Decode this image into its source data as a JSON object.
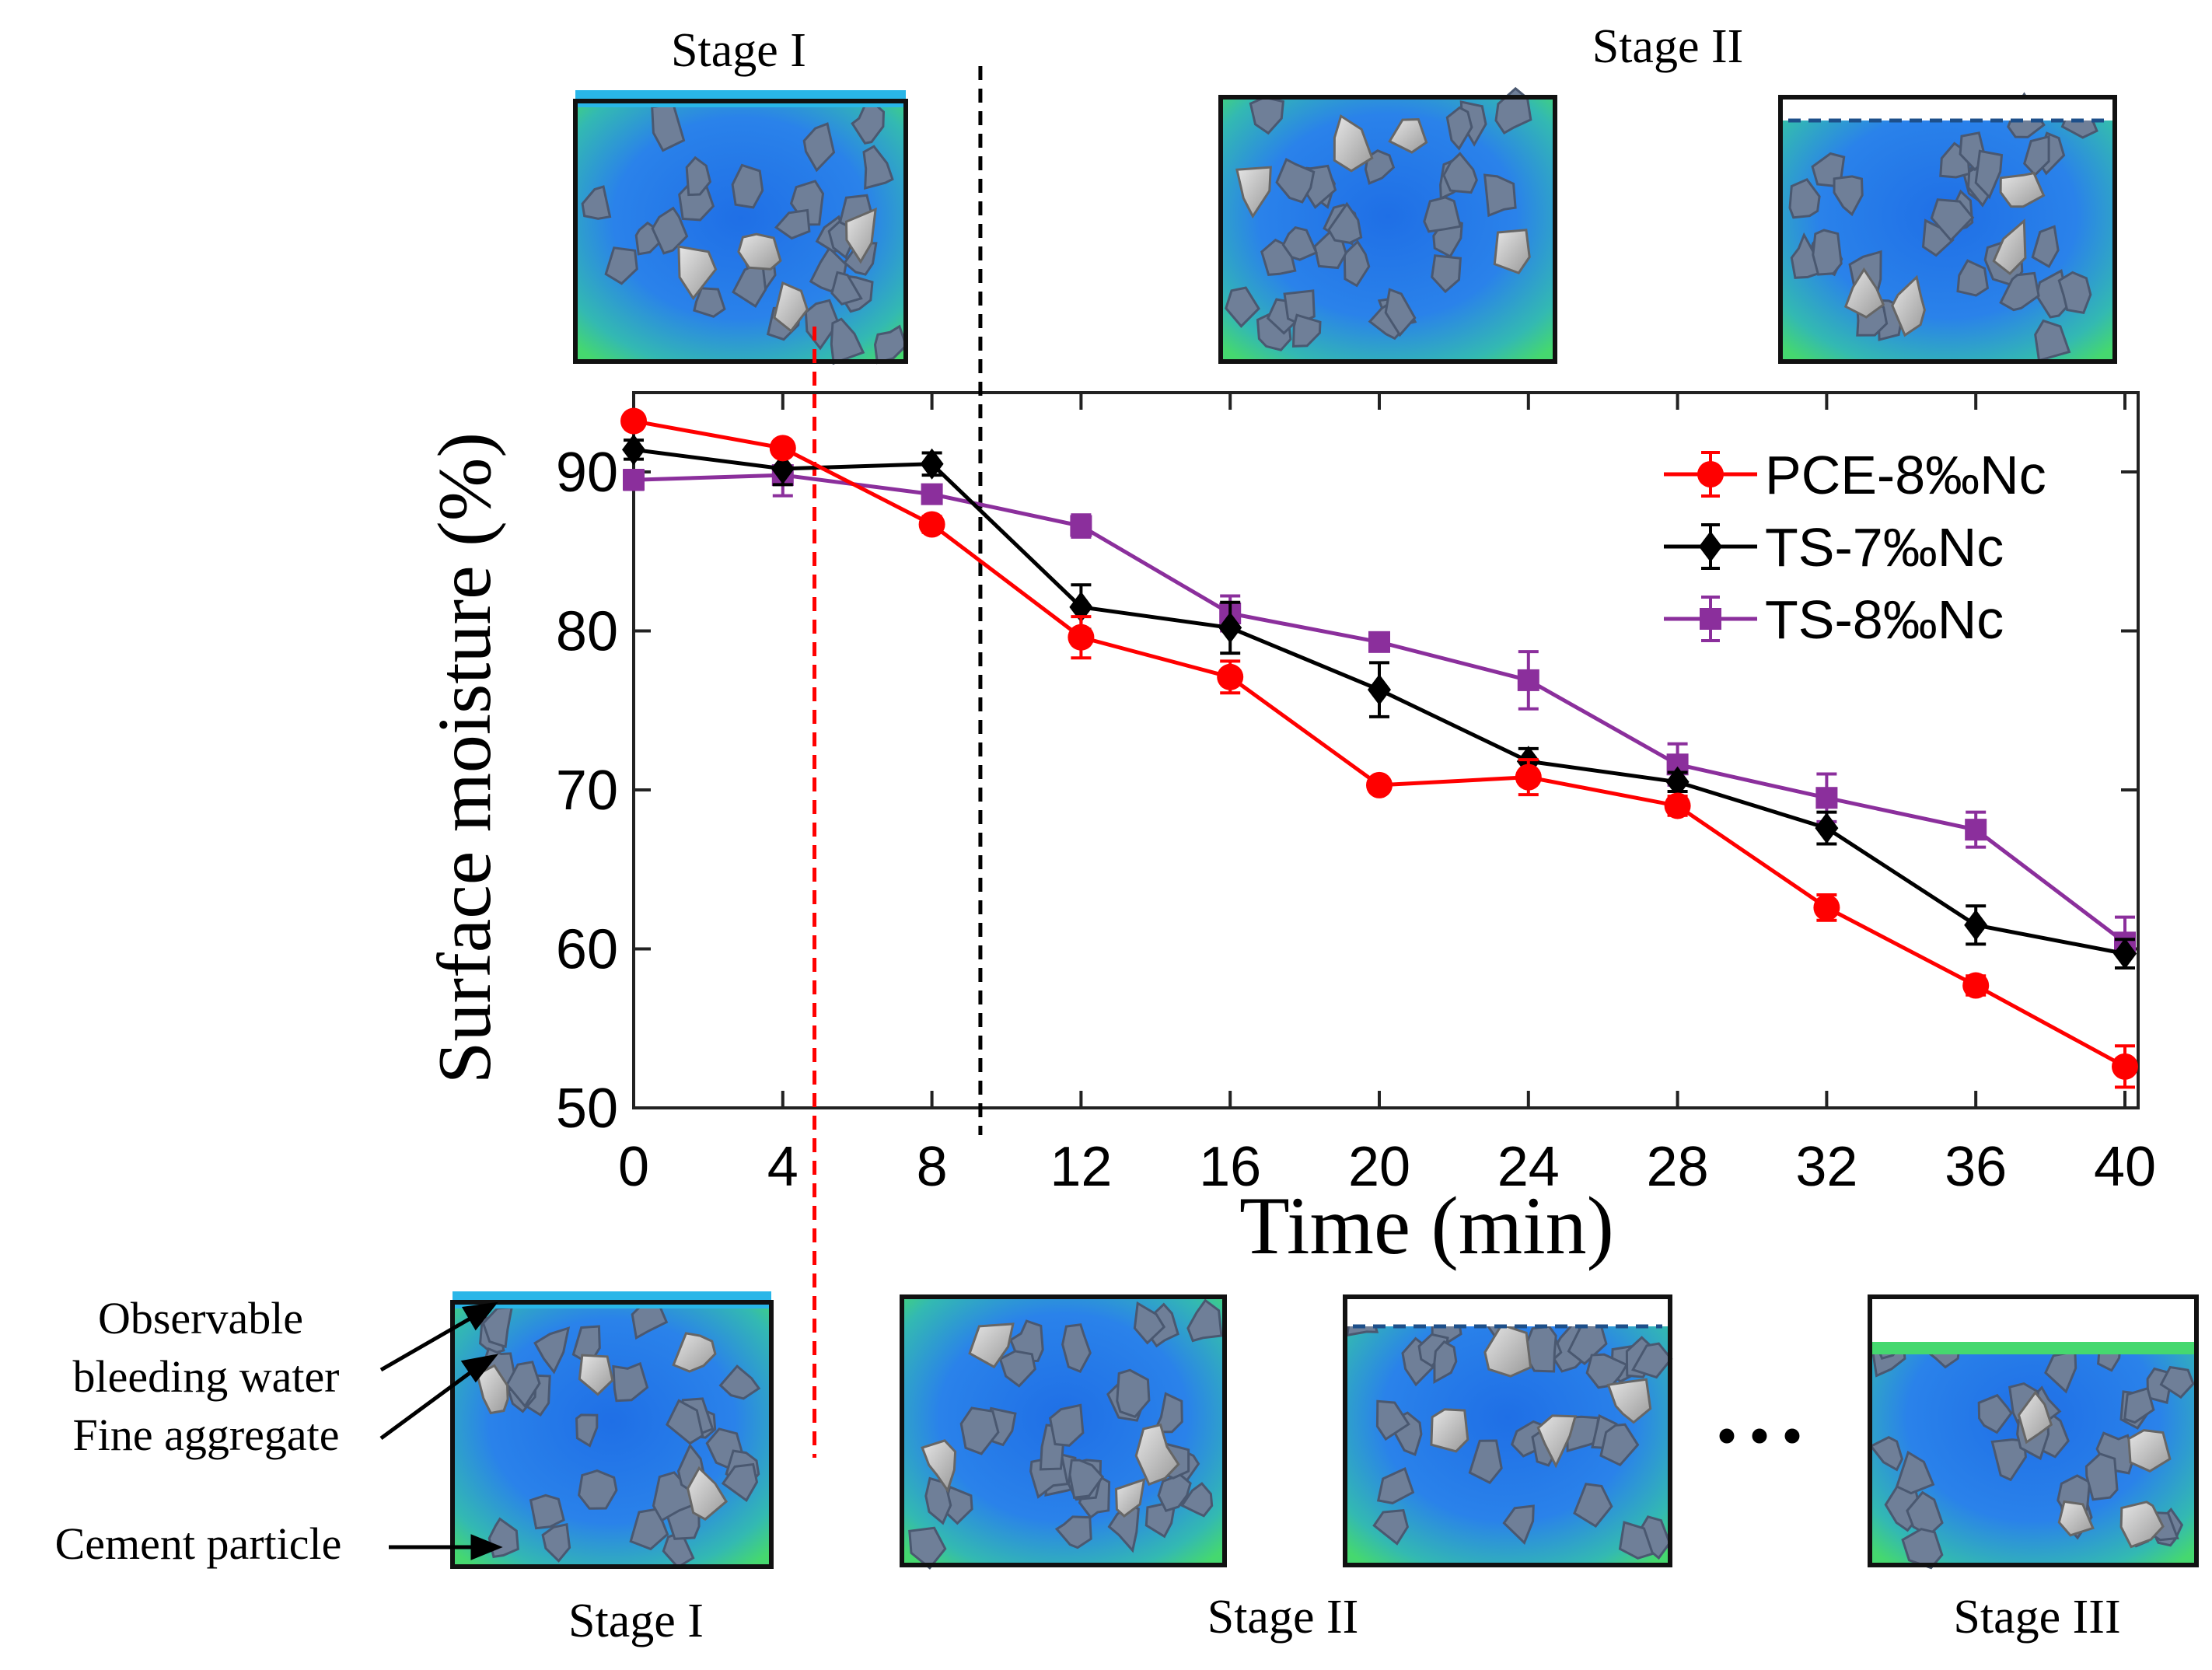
{
  "chart_data": {
    "type": "line",
    "title": "",
    "xlabel": "Time (min)",
    "ylabel": "Surface moisture (%)",
    "x": [
      0,
      4,
      8,
      12,
      16,
      20,
      24,
      28,
      32,
      36,
      40
    ],
    "xlim": [
      0,
      40
    ],
    "ylim": [
      50,
      95
    ],
    "xticks": [
      "0",
      "4",
      "8",
      "12",
      "16",
      "20",
      "24",
      "28",
      "32",
      "36",
      "40"
    ],
    "yticks": [
      "50",
      "60",
      "70",
      "80",
      "90"
    ],
    "grid": false,
    "legend_position": "top-right",
    "series": [
      {
        "name": "PCE-8‰Nc",
        "color": "#ff0000",
        "marker": "circle",
        "values": [
          93.2,
          91.5,
          86.7,
          79.6,
          77.1,
          70.3,
          70.8,
          69.0,
          62.6,
          57.7,
          52.6
        ],
        "errors": [
          0.3,
          0.4,
          0.5,
          1.3,
          1.0,
          0.4,
          1.1,
          0.6,
          0.8,
          0.6,
          1.3
        ]
      },
      {
        "name": "TS-7‰Nc",
        "color": "#000000",
        "marker": "diamond",
        "values": [
          91.4,
          90.2,
          90.5,
          81.5,
          80.2,
          76.3,
          71.8,
          70.5,
          67.6,
          61.5,
          59.7
        ],
        "errors": [
          0.6,
          1.0,
          0.7,
          1.4,
          1.6,
          1.7,
          0.8,
          0.6,
          1.0,
          1.2,
          0.9
        ]
      },
      {
        "name": "TS-8‰Nc",
        "color": "#8b2f9c",
        "marker": "square",
        "values": [
          89.5,
          89.8,
          88.6,
          86.6,
          81.1,
          79.3,
          76.9,
          71.6,
          69.5,
          67.5,
          60.4
        ],
        "errors": [
          0.6,
          1.3,
          0.5,
          0.7,
          1.1,
          0.5,
          1.8,
          1.3,
          1.5,
          1.1,
          1.6
        ]
      }
    ],
    "stage_dividers": [
      {
        "x": 4.85,
        "color": "#ff0000",
        "style": "dashed"
      },
      {
        "x": 9.3,
        "color": "#000000",
        "style": "dashed"
      }
    ]
  },
  "labels": {
    "top_stage_1": "Stage I",
    "top_stage_2": "Stage II",
    "bottom_stage_1": "Stage I",
    "bottom_stage_2": "Stage II",
    "bottom_stage_3": "Stage III",
    "ellipsis": "• • •",
    "annot_observable": "Observable",
    "annot_bleeding": "bleeding water",
    "annot_fine_aggregate": "Fine aggregate",
    "annot_cement_particle": "Cement particle"
  },
  "colors": {
    "water": "#29b6e8",
    "paste_blue": "#1e6fe0",
    "paste_green": "#38d97a",
    "particle": "#6f7f98",
    "aggregate": "#c9c9c9"
  }
}
